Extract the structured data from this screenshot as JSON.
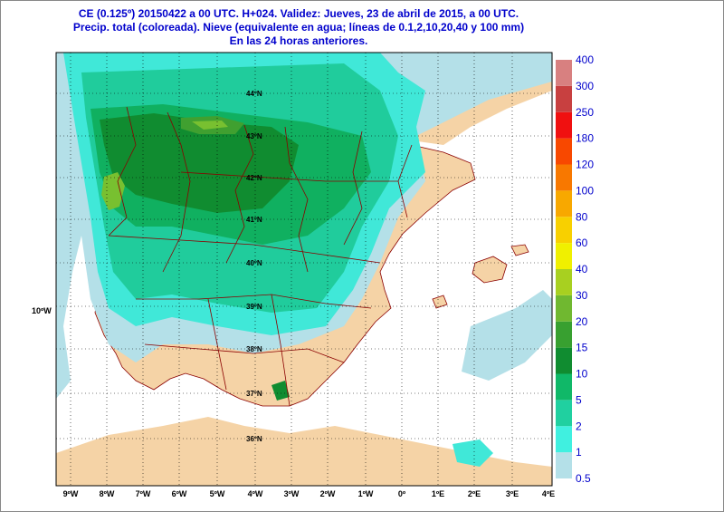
{
  "title": {
    "line1": "CE (0.125º) 20150422 a 00 UTC.  H+024. Validez: Jueves, 23 de abril de 2015,  a  00 UTC.",
    "line2": "Precip. total (coloreada). Nieve (equivalente en agua; líneas de 0.1,2,10,20,40 y 100 mm)",
    "line3": "En las 24 horas anteriores."
  },
  "map": {
    "lon_labels": [
      "9ºW",
      "8ºW",
      "7ºW",
      "6ºW",
      "5ºW",
      "4ºW",
      "3ºW",
      "2ºW",
      "1ºW",
      "0º",
      "1ºE",
      "2ºE",
      "3ºE",
      "4ºE"
    ],
    "lat_labels": [
      "44ºN",
      "43ºN",
      "42ºN",
      "41ºN",
      "40ºN",
      "39ºN",
      "38ºN",
      "37ºN",
      "36ºN"
    ],
    "side_label": "10ºW",
    "colors": {
      "land_dry": "#f5d3a6",
      "sea": "#ffffff",
      "p0_5": "#b4e0e8",
      "p1": "#40e8d8",
      "p2": "#20cc9c",
      "p5": "#10b060",
      "p10": "#108c30",
      "p15": "#40a030",
      "p20": "#78c030",
      "border": "#8b0000"
    }
  },
  "legend": {
    "entries": [
      {
        "value": "0.5",
        "color": "#b4e0e8"
      },
      {
        "value": "1",
        "color": "#40f0e0"
      },
      {
        "value": "2",
        "color": "#20d0a0"
      },
      {
        "value": "5",
        "color": "#10b868"
      },
      {
        "value": "10",
        "color": "#108c30"
      },
      {
        "value": "15",
        "color": "#38a030"
      },
      {
        "value": "20",
        "color": "#70b830"
      },
      {
        "value": "30",
        "color": "#a8d020"
      },
      {
        "value": "40",
        "color": "#f0f000"
      },
      {
        "value": "60",
        "color": "#f8d000"
      },
      {
        "value": "80",
        "color": "#f8a800"
      },
      {
        "value": "100",
        "color": "#f87800"
      },
      {
        "value": "120",
        "color": "#f84800"
      },
      {
        "value": "180",
        "color": "#f01010"
      },
      {
        "value": "250",
        "color": "#c84040"
      },
      {
        "value": "300",
        "color": "#d88080"
      },
      {
        "value": "400",
        "color": "#ecc0c0"
      }
    ]
  }
}
